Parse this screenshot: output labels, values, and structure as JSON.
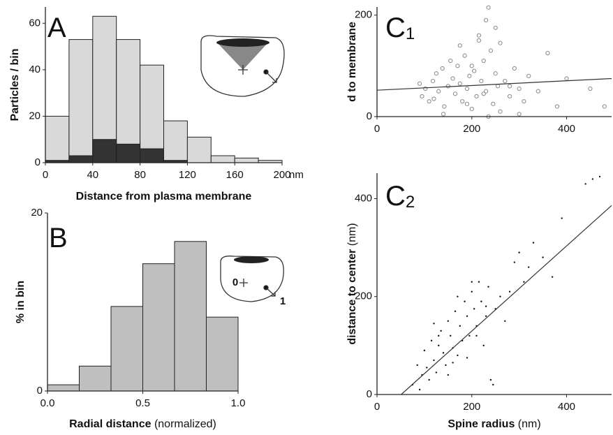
{
  "chart_data": [
    {
      "type": "histogram",
      "label": "A",
      "xlabel": "Distance from plasma membrane",
      "ylabel": "Particles / bin",
      "xunit": "nm",
      "bins": [
        0,
        20,
        40,
        60,
        80,
        100,
        120,
        140,
        160,
        180,
        200
      ],
      "series": [
        {
          "color": "#d9d9d9",
          "values": [
            20,
            53,
            63,
            53,
            42,
            18,
            11,
            3,
            2,
            1
          ]
        },
        {
          "color": "#333333",
          "values": [
            1,
            3,
            10,
            8,
            6,
            1,
            0,
            0,
            0,
            0
          ]
        }
      ],
      "xlim": [
        0,
        200
      ],
      "ylim": [
        0,
        67
      ],
      "xticks": [
        0,
        40,
        80,
        120,
        160,
        200
      ],
      "yticks": [
        0,
        20,
        40,
        60
      ]
    },
    {
      "type": "histogram",
      "label": "B",
      "xlabel": "Radial distance",
      "xlabel_unit": "(normalized)",
      "ylabel": "% in bin",
      "annotations": [
        "0",
        "1"
      ],
      "bins": [
        0,
        0.1667,
        0.3333,
        0.5,
        0.6667,
        0.8333,
        1
      ],
      "series": [
        {
          "color": "#bfbfbf",
          "values": [
            0.7,
            2.8,
            9.5,
            14.3,
            16.8,
            8.3
          ]
        }
      ],
      "xlim": [
        0,
        1
      ],
      "ylim": [
        0,
        20
      ],
      "xticks": [
        {
          "value": 0,
          "label": "0.0"
        },
        0.5,
        {
          "value": 1,
          "label": "1.0"
        }
      ],
      "yticks": [
        0,
        20
      ]
    },
    {
      "type": "scatter",
      "label": "C",
      "label_sub": "1",
      "ylabel": "d to membrane",
      "color": "#888888",
      "marker": "open",
      "x": [
        95,
        102,
        110,
        118,
        125,
        130,
        138,
        142,
        150,
        155,
        160,
        165,
        170,
        175,
        180,
        185,
        190,
        195,
        200,
        205,
        210,
        215,
        220,
        225,
        230,
        235,
        240,
        245,
        250,
        255,
        260,
        270,
        280,
        290,
        300,
        310,
        320,
        340,
        360,
        380,
        400,
        450,
        480,
        90,
        140,
        175,
        200,
        230,
        260,
        300,
        120,
        190,
        215,
        250,
        280,
        235,
        225
      ],
      "values": [
        40,
        55,
        30,
        70,
        85,
        50,
        95,
        20,
        60,
        110,
        75,
        45,
        100,
        65,
        30,
        120,
        55,
        80,
        15,
        90,
        40,
        160,
        70,
        110,
        50,
        215,
        130,
        25,
        85,
        60,
        145,
        70,
        40,
        95,
        55,
        30,
        80,
        50,
        125,
        20,
        75,
        55,
        20,
        65,
        5,
        140,
        100,
        190,
        10,
        5,
        35,
        25,
        150,
        175,
        60,
        0,
        45
      ],
      "fit": {
        "x": [
          0,
          495
        ],
        "y": [
          52,
          75
        ]
      },
      "xlim": [
        0,
        495
      ],
      "ylim": [
        0,
        216
      ],
      "xticks": [
        0,
        200,
        400
      ],
      "yticks": [
        0,
        200
      ]
    },
    {
      "type": "scatter",
      "label": "C",
      "label_sub": "2",
      "xlabel": "Spine radius",
      "xlabel_unit": "(nm)",
      "ylabel": "distance to center",
      "ylabel_unit": "(nm)",
      "color": "#111111",
      "marker": "dot",
      "x": [
        75,
        85,
        95,
        100,
        105,
        110,
        115,
        120,
        125,
        130,
        135,
        140,
        145,
        150,
        155,
        160,
        165,
        170,
        175,
        180,
        185,
        190,
        195,
        200,
        205,
        210,
        215,
        220,
        225,
        230,
        235,
        240,
        250,
        260,
        270,
        280,
        290,
        300,
        310,
        320,
        330,
        350,
        370,
        390,
        440,
        455,
        470,
        90,
        130,
        150,
        170,
        190,
        210,
        230,
        245,
        120,
        160,
        200
      ],
      "values": [
        20,
        60,
        40,
        90,
        55,
        30,
        110,
        70,
        45,
        100,
        130,
        85,
        60,
        150,
        120,
        95,
        170,
        80,
        140,
        110,
        190,
        160,
        120,
        210,
        175,
        140,
        230,
        190,
        100,
        160,
        220,
        30,
        175,
        200,
        150,
        210,
        270,
        290,
        230,
        260,
        310,
        280,
        240,
        360,
        430,
        440,
        445,
        10,
        120,
        40,
        200,
        75,
        120,
        180,
        20,
        145,
        65,
        230
      ],
      "fit": {
        "x": [
          51,
          495
        ],
        "y": [
          0,
          386
        ]
      },
      "xlim": [
        0,
        495
      ],
      "ylim": [
        0,
        452
      ],
      "xticks": [
        0,
        200,
        400
      ],
      "yticks": [
        0,
        200,
        400
      ]
    }
  ]
}
